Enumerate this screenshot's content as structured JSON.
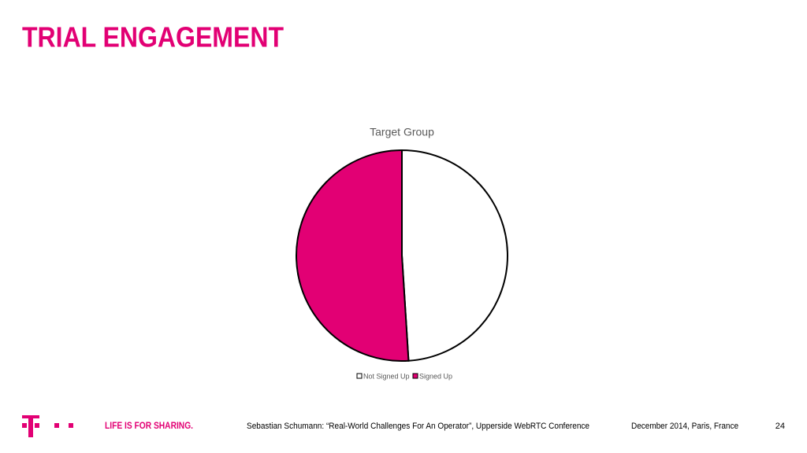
{
  "slide": {
    "title": "TRIAL ENGAGEMENT",
    "slogan": "LIFE IS FOR SHARING.",
    "footer": "Sebastian Schumann: “Real-World Challenges For An Operator”, Upperside WebRTC Conference",
    "date": "December 2014, Paris, France",
    "page": "24"
  },
  "chart_data": {
    "type": "pie",
    "title": "Target Group",
    "categories": [
      "Not Signed Up",
      "Signed Up"
    ],
    "values": [
      49,
      51
    ],
    "colors": [
      "#ffffff",
      "#e20074"
    ],
    "legend": "bottom"
  }
}
